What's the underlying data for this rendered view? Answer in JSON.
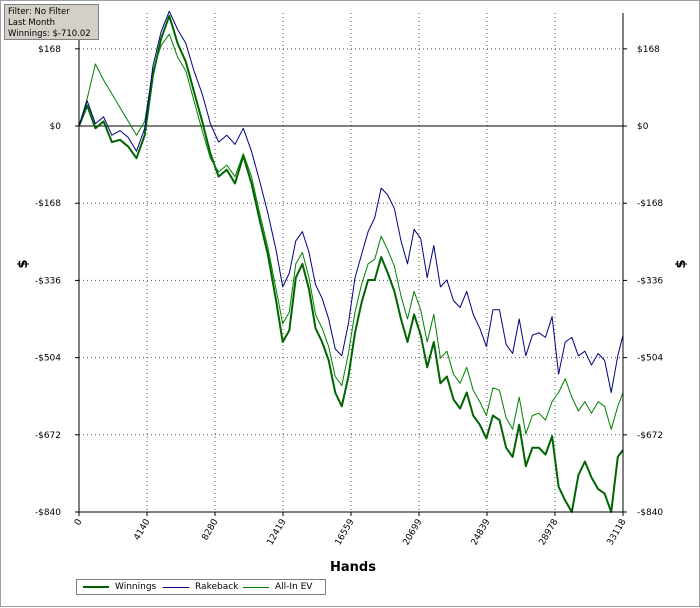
{
  "info_box": {
    "filter": "Filter: No Filter",
    "period": "Last Month",
    "winnings": "Winnings: $-710.02"
  },
  "chart_data": {
    "type": "line",
    "xlabel": "Hands",
    "ylabel": "$",
    "xlim": [
      0,
      33118
    ],
    "ylim": [
      -840,
      246
    ],
    "x_ticks": [
      0,
      4140,
      8280,
      12419,
      16559,
      20699,
      24839,
      28978,
      33118
    ],
    "x_tick_labels": [
      "0",
      "4140",
      "8280",
      "12419",
      "16559",
      "20699",
      "24839",
      "28978",
      "33118"
    ],
    "y_ticks": [
      168,
      0,
      -168,
      -336,
      -504,
      -672,
      -840
    ],
    "y_tick_labels": [
      "$168",
      "$0",
      "-$168",
      "-$336",
      "-$504",
      "-$672",
      "-$840"
    ],
    "grid": true,
    "legend_position": "bottom-left",
    "series": [
      {
        "name": "Winnings",
        "color": "#006400",
        "width": 2,
        "points": [
          [
            0,
            0
          ],
          [
            500,
            45
          ],
          [
            1000,
            -5
          ],
          [
            1500,
            10
          ],
          [
            2000,
            -35
          ],
          [
            2500,
            -30
          ],
          [
            3000,
            -45
          ],
          [
            3500,
            -70
          ],
          [
            4000,
            -20
          ],
          [
            4500,
            110
          ],
          [
            5000,
            190
          ],
          [
            5500,
            240
          ],
          [
            6000,
            180
          ],
          [
            6500,
            140
          ],
          [
            7000,
            75
          ],
          [
            7500,
            10
          ],
          [
            8000,
            -60
          ],
          [
            8500,
            -110
          ],
          [
            9000,
            -95
          ],
          [
            9500,
            -125
          ],
          [
            10000,
            -65
          ],
          [
            10500,
            -125
          ],
          [
            11000,
            -205
          ],
          [
            11500,
            -280
          ],
          [
            12000,
            -380
          ],
          [
            12400,
            -470
          ],
          [
            12800,
            -445
          ],
          [
            13200,
            -330
          ],
          [
            13600,
            -300
          ],
          [
            14000,
            -355
          ],
          [
            14400,
            -440
          ],
          [
            14800,
            -470
          ],
          [
            15200,
            -510
          ],
          [
            15600,
            -580
          ],
          [
            16000,
            -610
          ],
          [
            16400,
            -545
          ],
          [
            16800,
            -450
          ],
          [
            17200,
            -385
          ],
          [
            17600,
            -335
          ],
          [
            18000,
            -335
          ],
          [
            18400,
            -285
          ],
          [
            18800,
            -320
          ],
          [
            19200,
            -360
          ],
          [
            19600,
            -420
          ],
          [
            20000,
            -470
          ],
          [
            20400,
            -410
          ],
          [
            20800,
            -455
          ],
          [
            21200,
            -525
          ],
          [
            21600,
            -470
          ],
          [
            22000,
            -560
          ],
          [
            22400,
            -545
          ],
          [
            22800,
            -595
          ],
          [
            23200,
            -615
          ],
          [
            23600,
            -580
          ],
          [
            24000,
            -630
          ],
          [
            24400,
            -650
          ],
          [
            24800,
            -680
          ],
          [
            25200,
            -630
          ],
          [
            25600,
            -640
          ],
          [
            26000,
            -700
          ],
          [
            26400,
            -720
          ],
          [
            26800,
            -650
          ],
          [
            27200,
            -740
          ],
          [
            27600,
            -700
          ],
          [
            28000,
            -700
          ],
          [
            28400,
            -715
          ],
          [
            28800,
            -675
          ],
          [
            29200,
            -785
          ],
          [
            29600,
            -815
          ],
          [
            30000,
            -840
          ],
          [
            30400,
            -760
          ],
          [
            30800,
            -730
          ],
          [
            31200,
            -765
          ],
          [
            31600,
            -790
          ],
          [
            32000,
            -800
          ],
          [
            32400,
            -840
          ],
          [
            32800,
            -720
          ],
          [
            33118,
            -705
          ]
        ]
      },
      {
        "name": "Rakeback",
        "color": "#000080",
        "width": 1,
        "points": [
          [
            0,
            0
          ],
          [
            500,
            55
          ],
          [
            1000,
            5
          ],
          [
            1500,
            20
          ],
          [
            2000,
            -20
          ],
          [
            2500,
            -10
          ],
          [
            3000,
            -25
          ],
          [
            3500,
            -55
          ],
          [
            4000,
            -5
          ],
          [
            4500,
            130
          ],
          [
            5000,
            205
          ],
          [
            5500,
            250
          ],
          [
            6000,
            210
          ],
          [
            6500,
            180
          ],
          [
            7000,
            120
          ],
          [
            7500,
            70
          ],
          [
            8000,
            5
          ],
          [
            8500,
            -35
          ],
          [
            9000,
            -20
          ],
          [
            9500,
            -40
          ],
          [
            10000,
            -5
          ],
          [
            10500,
            -55
          ],
          [
            11000,
            -120
          ],
          [
            11500,
            -190
          ],
          [
            12000,
            -270
          ],
          [
            12400,
            -350
          ],
          [
            12800,
            -320
          ],
          [
            13200,
            -250
          ],
          [
            13600,
            -230
          ],
          [
            14000,
            -275
          ],
          [
            14400,
            -345
          ],
          [
            14800,
            -375
          ],
          [
            15200,
            -420
          ],
          [
            15600,
            -485
          ],
          [
            16000,
            -500
          ],
          [
            16400,
            -430
          ],
          [
            16800,
            -330
          ],
          [
            17200,
            -280
          ],
          [
            17600,
            -230
          ],
          [
            18000,
            -200
          ],
          [
            18400,
            -135
          ],
          [
            18800,
            -150
          ],
          [
            19200,
            -180
          ],
          [
            19600,
            -250
          ],
          [
            20000,
            -300
          ],
          [
            20400,
            -225
          ],
          [
            20800,
            -245
          ],
          [
            21200,
            -330
          ],
          [
            21600,
            -260
          ],
          [
            22000,
            -350
          ],
          [
            22400,
            -335
          ],
          [
            22800,
            -380
          ],
          [
            23200,
            -395
          ],
          [
            23600,
            -360
          ],
          [
            24000,
            -410
          ],
          [
            24400,
            -440
          ],
          [
            24800,
            -480
          ],
          [
            25200,
            -400
          ],
          [
            25600,
            -400
          ],
          [
            26000,
            -475
          ],
          [
            26400,
            -495
          ],
          [
            26800,
            -420
          ],
          [
            27200,
            -500
          ],
          [
            27600,
            -455
          ],
          [
            28000,
            -450
          ],
          [
            28400,
            -460
          ],
          [
            28800,
            -415
          ],
          [
            29200,
            -540
          ],
          [
            29600,
            -470
          ],
          [
            30000,
            -460
          ],
          [
            30400,
            -500
          ],
          [
            30800,
            -490
          ],
          [
            31200,
            -520
          ],
          [
            31600,
            -495
          ],
          [
            32000,
            -510
          ],
          [
            32400,
            -580
          ],
          [
            32800,
            -500
          ],
          [
            33118,
            -455
          ]
        ]
      },
      {
        "name": "All-In EV",
        "color": "#008000",
        "width": 1,
        "points": [
          [
            0,
            0
          ],
          [
            500,
            60
          ],
          [
            1000,
            135
          ],
          [
            1500,
            100
          ],
          [
            2000,
            70
          ],
          [
            2500,
            40
          ],
          [
            3000,
            10
          ],
          [
            3500,
            -20
          ],
          [
            4000,
            10
          ],
          [
            4500,
            120
          ],
          [
            5000,
            175
          ],
          [
            5500,
            200
          ],
          [
            6000,
            150
          ],
          [
            6500,
            120
          ],
          [
            7000,
            55
          ],
          [
            7500,
            -10
          ],
          [
            8000,
            -70
          ],
          [
            8500,
            -100
          ],
          [
            9000,
            -85
          ],
          [
            9500,
            -110
          ],
          [
            10000,
            -60
          ],
          [
            10500,
            -110
          ],
          [
            11000,
            -190
          ],
          [
            11500,
            -265
          ],
          [
            12000,
            -355
          ],
          [
            12400,
            -430
          ],
          [
            12800,
            -405
          ],
          [
            13200,
            -300
          ],
          [
            13600,
            -275
          ],
          [
            14000,
            -330
          ],
          [
            14400,
            -410
          ],
          [
            14800,
            -440
          ],
          [
            15200,
            -480
          ],
          [
            15600,
            -545
          ],
          [
            16000,
            -565
          ],
          [
            16400,
            -495
          ],
          [
            16800,
            -405
          ],
          [
            17200,
            -345
          ],
          [
            17600,
            -300
          ],
          [
            18000,
            -290
          ],
          [
            18400,
            -240
          ],
          [
            18800,
            -270
          ],
          [
            19200,
            -305
          ],
          [
            19600,
            -370
          ],
          [
            20000,
            -420
          ],
          [
            20400,
            -360
          ],
          [
            20800,
            -400
          ],
          [
            21200,
            -470
          ],
          [
            21600,
            -410
          ],
          [
            22000,
            -505
          ],
          [
            22400,
            -490
          ],
          [
            22800,
            -540
          ],
          [
            23200,
            -560
          ],
          [
            23600,
            -525
          ],
          [
            24000,
            -575
          ],
          [
            24400,
            -600
          ],
          [
            24800,
            -630
          ],
          [
            25200,
            -570
          ],
          [
            25600,
            -575
          ],
          [
            26000,
            -635
          ],
          [
            26400,
            -660
          ],
          [
            26800,
            -590
          ],
          [
            27200,
            -670
          ],
          [
            27600,
            -630
          ],
          [
            28000,
            -625
          ],
          [
            28400,
            -640
          ],
          [
            28800,
            -600
          ],
          [
            29200,
            -580
          ],
          [
            29600,
            -550
          ],
          [
            30000,
            -590
          ],
          [
            30400,
            -620
          ],
          [
            30800,
            -600
          ],
          [
            31200,
            -625
          ],
          [
            31600,
            -600
          ],
          [
            32000,
            -610
          ],
          [
            32400,
            -660
          ],
          [
            32800,
            -610
          ],
          [
            33118,
            -580
          ]
        ]
      }
    ]
  }
}
